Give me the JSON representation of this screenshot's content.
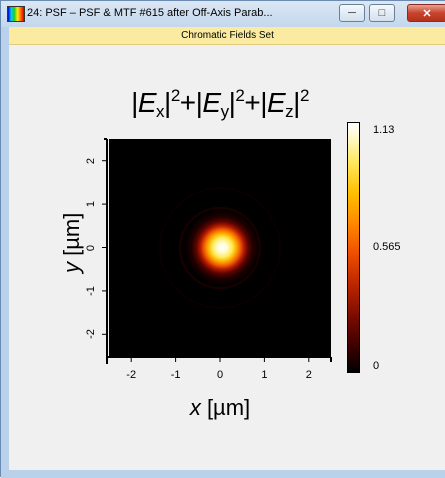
{
  "window": {
    "title": "24: PSF – PSF & MTF #615 after Off-Axis Parab...",
    "minimize_glyph": "─",
    "maximize_glyph": "□",
    "close_glyph": "✕",
    "icon": "app-spectrum-icon"
  },
  "subheader": {
    "label": "Chromatic Fields Set"
  },
  "chart_data": {
    "type": "heatmap",
    "title": "|Ex|2+|Ey|2+|Ez|2",
    "title_parts": [
      "|",
      "E",
      "x",
      "|",
      "2",
      "+|",
      "E",
      "y",
      "|",
      "2",
      "+|",
      "E",
      "z",
      "|",
      "2"
    ],
    "xlabel_var": "x",
    "xlabel_unit": "[µm]",
    "ylabel_var": "y",
    "ylabel_unit": "[µm]",
    "xlim": [
      -2.5,
      2.5
    ],
    "ylim": [
      -2.5,
      2.5
    ],
    "x_ticks": [
      "-2",
      "-1",
      "0",
      "1",
      "2"
    ],
    "y_ticks": [
      "2",
      "1",
      "0",
      "-1",
      "-2"
    ],
    "peak": {
      "x": 0,
      "y": 0,
      "value": 1.13
    },
    "colorbar": {
      "max_label": "1.13",
      "mid_label": "0.565",
      "min_label": "0",
      "colors": [
        "#000000",
        "#7a0a00",
        "#f05000",
        "#ffc000",
        "#ffffff"
      ]
    }
  }
}
